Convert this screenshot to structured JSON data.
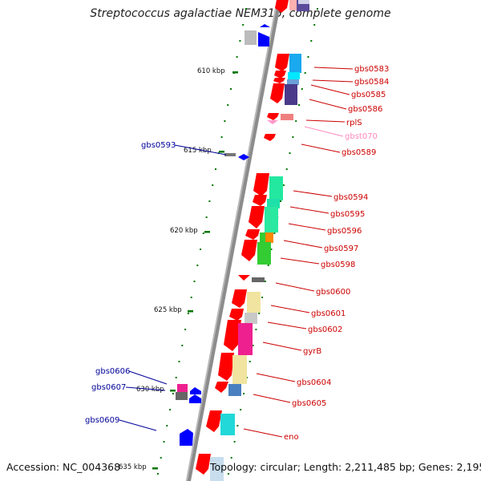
{
  "title": "Streptococcus agalactiae NEM316, complete genome",
  "accession": "Accession: NC_004368",
  "topology": "Topology: circular; Length: 2,211,485 bp; Genes: 2,195",
  "colors": {
    "backbone": "#8c8c8c",
    "forward_gene": "#ff0000",
    "reverse_gene": "#0000ff",
    "label_red": "#cc0000",
    "label_pink": "#ff88bb",
    "label_blue": "#000099",
    "tick": "#007700"
  },
  "scale_labels": [
    "610 kbp",
    "615 kbp",
    "620 kbp",
    "625 kbp",
    "630 kbp",
    "635 kbp"
  ],
  "gene_labels": [
    {
      "text": "gbs0583",
      "color": "#cc0000"
    },
    {
      "text": "gbs0584",
      "color": "#cc0000"
    },
    {
      "text": "gbs0585",
      "color": "#cc0000"
    },
    {
      "text": "gbs0586",
      "color": "#cc0000"
    },
    {
      "text": "rplS",
      "color": "#cc0000"
    },
    {
      "text": "gbst070",
      "color": "#ff88bb"
    },
    {
      "text": "gbs0589",
      "color": "#cc0000"
    },
    {
      "text": "gbs0594",
      "color": "#cc0000"
    },
    {
      "text": "gbs0595",
      "color": "#cc0000"
    },
    {
      "text": "gbs0596",
      "color": "#cc0000"
    },
    {
      "text": "gbs0597",
      "color": "#cc0000"
    },
    {
      "text": "gbs0598",
      "color": "#cc0000"
    },
    {
      "text": "gbs0600",
      "color": "#cc0000"
    },
    {
      "text": "gbs0601",
      "color": "#cc0000"
    },
    {
      "text": "gbs0602",
      "color": "#cc0000"
    },
    {
      "text": "gyrB",
      "color": "#cc0000"
    },
    {
      "text": "gbs0604",
      "color": "#cc0000"
    },
    {
      "text": "gbs0605",
      "color": "#cc0000"
    },
    {
      "text": "eno",
      "color": "#cc0000"
    },
    {
      "text": "gbs0593",
      "color": "#000099"
    },
    {
      "text": "gbs0606",
      "color": "#000099"
    },
    {
      "text": "gbs0607",
      "color": "#000099"
    },
    {
      "text": "gbs0609",
      "color": "#000099"
    }
  ]
}
